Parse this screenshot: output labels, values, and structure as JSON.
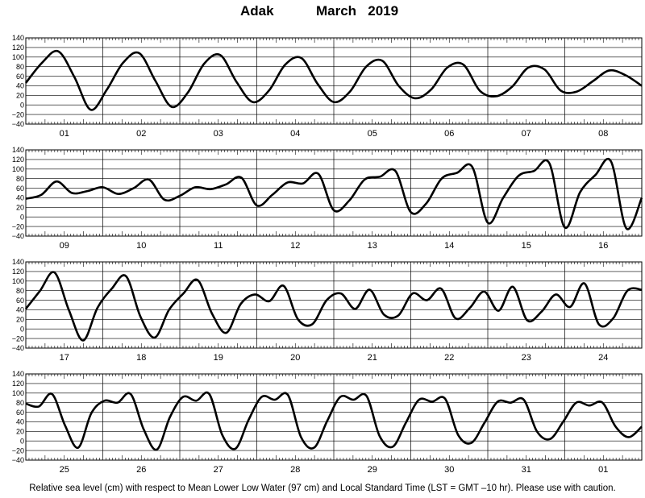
{
  "title": {
    "station": "Adak",
    "month_year": "March   2019"
  },
  "footer": "Relative sea level (cm) with respect to Mean Lower Low Water (97 cm) and Local Standard Time (LST = GMT –10 hr). Please use with caution.",
  "chart_data": {
    "type": "line",
    "xlabel": "",
    "ylabel": "",
    "ylim": [
      -40,
      140
    ],
    "yticks": [
      -40,
      -20,
      0,
      20,
      40,
      60,
      80,
      100,
      120,
      140
    ],
    "ytick_labels": [
      "−40",
      "−20",
      "0",
      "20",
      "40",
      "60",
      "80",
      "100",
      "120",
      "140"
    ],
    "grid": true,
    "color": "#000000",
    "panels": [
      {
        "days": [
          "01",
          "02",
          "03",
          "04",
          "05",
          "06",
          "07",
          "08"
        ],
        "y": [
          46,
          88,
          112,
          58,
          -10,
          32,
          88,
          108,
          50,
          -4,
          26,
          86,
          104,
          48,
          6,
          30,
          84,
          98,
          44,
          6,
          28,
          80,
          92,
          40,
          14,
          32,
          78,
          84,
          30,
          18,
          38,
          78,
          74,
          30,
          28,
          50,
          72,
          62,
          40
        ]
      },
      {
        "days": [
          "09",
          "10",
          "11",
          "12",
          "13",
          "14",
          "15",
          "16"
        ],
        "y": [
          38,
          46,
          74,
          50,
          54,
          62,
          48,
          60,
          78,
          36,
          44,
          62,
          58,
          68,
          82,
          24,
          46,
          72,
          70,
          90,
          14,
          34,
          78,
          84,
          96,
          10,
          28,
          80,
          92,
          104,
          -12,
          40,
          86,
          96,
          112,
          -22,
          52,
          88,
          116,
          -24,
          40
        ]
      },
      {
        "days": [
          "17",
          "18",
          "19",
          "20",
          "21",
          "22",
          "23",
          "24"
        ],
        "y": [
          42,
          80,
          118,
          40,
          -24,
          44,
          84,
          110,
          26,
          -18,
          40,
          74,
          102,
          32,
          -8,
          52,
          72,
          58,
          90,
          20,
          10,
          60,
          74,
          42,
          82,
          30,
          28,
          74,
          60,
          84,
          22,
          44,
          78,
          38,
          88,
          18,
          36,
          72,
          46,
          95,
          10,
          22,
          80,
          82
        ]
      },
      {
        "days": [
          "25",
          "26",
          "27",
          "28",
          "29",
          "30",
          "31",
          "01"
        ],
        "y": [
          78,
          72,
          98,
          32,
          -14,
          58,
          84,
          80,
          98,
          24,
          -18,
          50,
          92,
          84,
          98,
          12,
          -16,
          44,
          92,
          86,
          96,
          8,
          -14,
          42,
          92,
          86,
          94,
          10,
          -12,
          38,
          86,
          82,
          88,
          12,
          -4,
          38,
          82,
          80,
          86,
          20,
          4,
          40,
          80,
          74,
          80,
          30,
          8,
          30
        ]
      }
    ]
  }
}
